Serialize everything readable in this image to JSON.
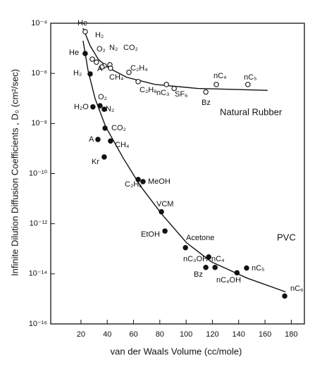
{
  "chart_data": {
    "type": "scatter",
    "yscale": "log",
    "x_label": "van der Waals Volume (cc/mole)",
    "y_label": "Infinite Dilution Diffusion Coefficients , D₀ (cm²/sec)",
    "annotations": [
      "Natural Rubber",
      "PVC"
    ],
    "xlim": [
      -3,
      190
    ],
    "ylim": [
      1e-16,
      0.0001
    ],
    "xticks": [
      20,
      40,
      60,
      80,
      100,
      120,
      140,
      160,
      180
    ],
    "yticks": [
      {
        "value": 0.0001,
        "label": "10⁻⁴"
      },
      {
        "value": 1e-06,
        "label": "10⁻⁶"
      },
      {
        "value": 1e-08,
        "label": "10⁻⁸"
      },
      {
        "value": 1e-10,
        "label": "10⁻¹⁰"
      },
      {
        "value": 1e-12,
        "label": "10⁻¹²"
      },
      {
        "value": 1e-14,
        "label": "10⁻¹⁴"
      },
      {
        "value": 1e-16,
        "label": "10⁻¹⁶"
      }
    ],
    "series": [
      {
        "marker": "open",
        "color": "#111",
        "labels": [
          "He",
          "H₂",
          "O₂",
          "N₂",
          "CO₂",
          "A",
          "CH₄",
          "C₂H₄",
          "C₂H₆",
          "nC₃",
          "SF₆",
          "Bz",
          "nC₄",
          "nC₅"
        ],
        "x": [
          23.2,
          28.6,
          31.8,
          37.7,
          42,
          36,
          42.5,
          56.5,
          63.5,
          85,
          90.9,
          115,
          123,
          147
        ],
        "values": [
          4.6e-05,
          3.7e-06,
          2.8e-06,
          2e-06,
          2.2e-06,
          1.8e-06,
          1.6e-06,
          1.1e-06,
          4.7e-07,
          3.6e-07,
          2.5e-07,
          1.8e-07,
          3.6e-07,
          3.6e-07
        ]
      },
      {
        "marker": "filled",
        "color": "#111",
        "labels": [
          "He",
          "H₂",
          "H₂O",
          "O₂",
          "N₂",
          "CO₂",
          "A",
          "CH₄",
          "Kr",
          "C₂H₆",
          "MeOH",
          "VCM",
          "EtOH",
          "Acetone",
          "nC₃OH",
          "Bz",
          "nC₄",
          "nC₅",
          "nC₄OH",
          "nC₆"
        ],
        "x": [
          23.2,
          27,
          29.1,
          34.5,
          37.7,
          38.3,
          32.9,
          42.5,
          37.7,
          63.5,
          67.2,
          81.2,
          83.9,
          99.5,
          117.2,
          115,
          122,
          146,
          138.7,
          175
        ],
        "values": [
          6.2e-06,
          9.5e-07,
          4.6e-08,
          5.1e-08,
          3.7e-08,
          6.5e-09,
          2.3e-09,
          2e-09,
          4.6e-10,
          5.8e-11,
          4.8e-11,
          3e-12,
          5.1e-13,
          1.1e-13,
          4.7e-14,
          1.8e-14,
          1.8e-14,
          1.7e-14,
          1.1e-14,
          1.3e-15
        ]
      }
    ],
    "fits": [
      {
        "color": "#111",
        "x": [
          21.6,
          27,
          33.4,
          41.5,
          54.9,
          76.4,
          108.6,
          162
        ],
        "values": [
          6.3e-05,
          1.26e-05,
          3.5e-06,
          1.6e-06,
          6.9e-07,
          3.6e-07,
          2.5e-07,
          2.1e-07
        ]
      },
      {
        "color": "#111",
        "x": [
          21.6,
          25.4,
          30.7,
          38.8,
          52.2,
          65.6,
          81.8,
          100.5,
          119.3,
          146.2,
          175.7
        ],
        "values": [
          2e-05,
          1.3e-06,
          1e-07,
          7.4e-09,
          4.1e-10,
          3e-11,
          2.3e-12,
          1.7e-13,
          3e-14,
          6.8e-15,
          1.9e-15
        ]
      }
    ]
  }
}
